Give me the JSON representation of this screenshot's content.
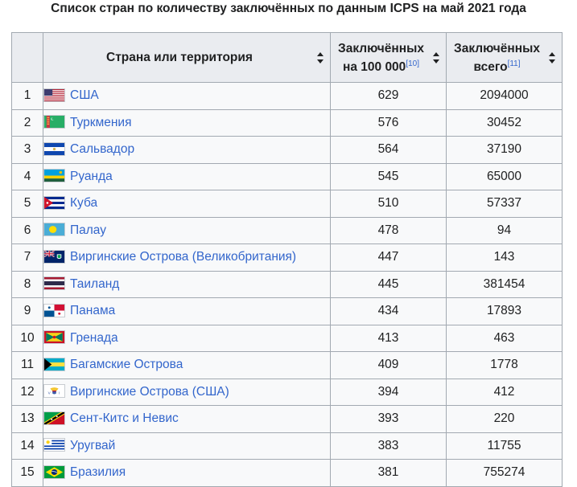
{
  "caption": "Список стран по количеству заключённых по данным ICPS на май 2021 года",
  "headers": {
    "num": "",
    "country": "Страна или территория",
    "rate_line1": "Заключённых",
    "rate_line2": "на 100 000",
    "rate_ref": "[10]",
    "total_line1": "Заключённых",
    "total_line2": "всего",
    "total_ref": "[11]"
  },
  "rows": [
    {
      "num": "1",
      "country": "США",
      "flag": "flag-usa-icon",
      "rate": "629",
      "total": "2094000"
    },
    {
      "num": "2",
      "country": "Туркмения",
      "flag": "flag-turkmenistan-icon",
      "rate": "576",
      "total": "30452"
    },
    {
      "num": "3",
      "country": "Сальвадор",
      "flag": "flag-el-salvador-icon",
      "rate": "564",
      "total": "37190"
    },
    {
      "num": "4",
      "country": "Руанда",
      "flag": "flag-rwanda-icon",
      "rate": "545",
      "total": "65000"
    },
    {
      "num": "5",
      "country": "Куба",
      "flag": "flag-cuba-icon",
      "rate": "510",
      "total": "57337"
    },
    {
      "num": "6",
      "country": "Палау",
      "flag": "flag-palau-icon",
      "rate": "478",
      "total": "94"
    },
    {
      "num": "7",
      "country": "Виргинские Острова (Великобритания)",
      "flag": "flag-bvi-icon",
      "rate": "447",
      "total": "143"
    },
    {
      "num": "8",
      "country": "Таиланд",
      "flag": "flag-thailand-icon",
      "rate": "445",
      "total": "381454"
    },
    {
      "num": "9",
      "country": "Панама",
      "flag": "flag-panama-icon",
      "rate": "434",
      "total": "17893"
    },
    {
      "num": "10",
      "country": "Гренада",
      "flag": "flag-grenada-icon",
      "rate": "413",
      "total": "463"
    },
    {
      "num": "11",
      "country": "Багамские Острова",
      "flag": "flag-bahamas-icon",
      "rate": "409",
      "total": "1778"
    },
    {
      "num": "12",
      "country": "Виргинские Острова (США)",
      "flag": "flag-usvi-icon",
      "rate": "394",
      "total": "412"
    },
    {
      "num": "13",
      "country": "Сент-Китс и Невис",
      "flag": "flag-st-kitts-icon",
      "rate": "393",
      "total": "220"
    },
    {
      "num": "14",
      "country": "Уругвай",
      "flag": "flag-uruguay-icon",
      "rate": "383",
      "total": "11755"
    },
    {
      "num": "15",
      "country": "Бразилия",
      "flag": "flag-brazil-icon",
      "rate": "381",
      "total": "755274"
    }
  ],
  "colors": {
    "link": "#3366cc",
    "header_bg": "#eaecf0",
    "cell_bg": "#f8f9fa",
    "border": "#a2a9b1"
  }
}
